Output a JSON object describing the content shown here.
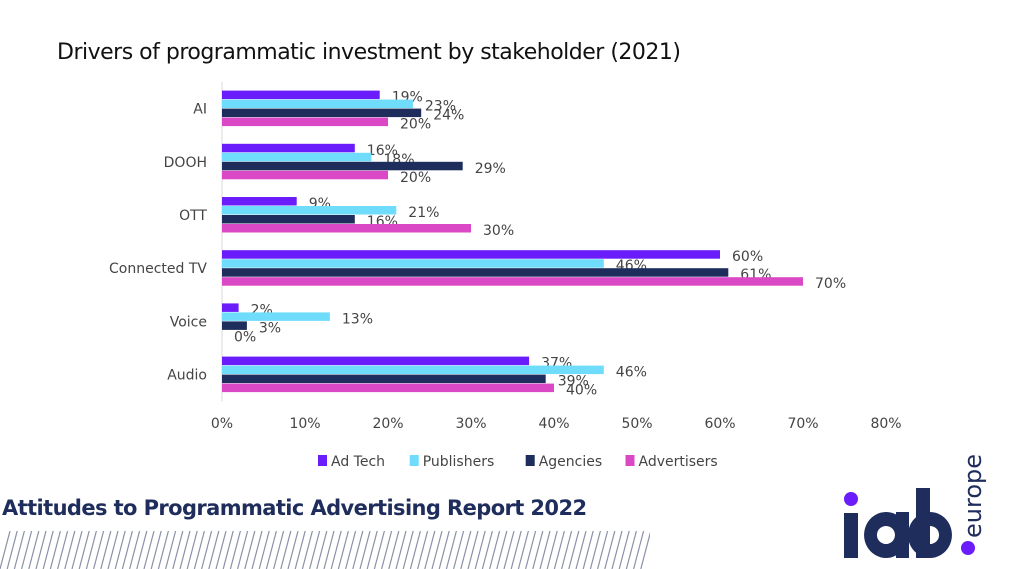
{
  "chart_data": {
    "type": "bar",
    "orientation": "horizontal",
    "title": "Drivers of programmatic investment by stakeholder (2021)",
    "categories": [
      "AI",
      "DOOH",
      "OTT",
      "Connected TV",
      "Voice",
      "Audio"
    ],
    "series": [
      {
        "name": "Ad Tech",
        "color": "#6a1cfb",
        "values": [
          19,
          16,
          9,
          60,
          2,
          37
        ]
      },
      {
        "name": "Publishers",
        "color": "#6fdcfc",
        "values": [
          23,
          18,
          21,
          46,
          13,
          46
        ]
      },
      {
        "name": "Agencies",
        "color": "#1f2d5c",
        "values": [
          24,
          29,
          16,
          61,
          3,
          39
        ]
      },
      {
        "name": "Advertisers",
        "color": "#db48c6",
        "values": [
          20,
          20,
          30,
          70,
          0,
          40
        ]
      }
    ],
    "xlim": [
      0,
      80
    ],
    "xticks": [
      "0%",
      "10%",
      "20%",
      "30%",
      "40%",
      "50%",
      "60%",
      "70%",
      "80%"
    ],
    "value_suffix": "%",
    "grid": false,
    "legend_position": "bottom"
  },
  "footer": {
    "report_title": "Attitudes to Programmatic Advertising Report 2022",
    "logo_text": "iab.europe"
  },
  "colors": {
    "brand_navy": "#1f2d5c",
    "brand_purple": "#6a1cfb"
  }
}
